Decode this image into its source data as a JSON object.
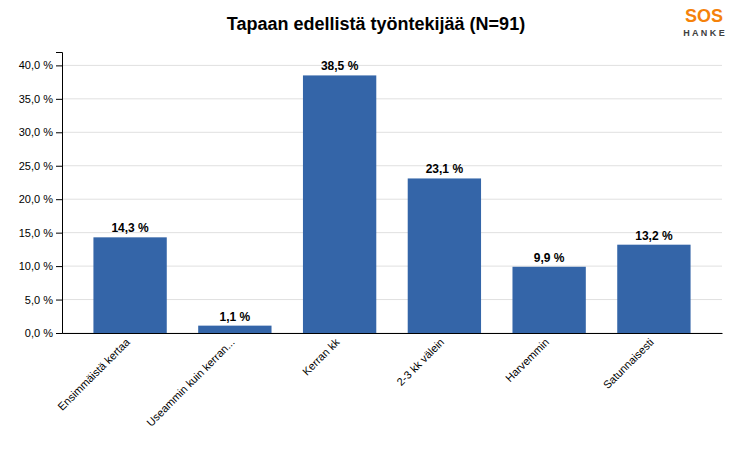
{
  "chart_data": {
    "type": "bar",
    "title": "Tapaan edellistä työntekijää (N=91)",
    "categories": [
      "Ensimmäistä kertaa",
      "Useammin kuin kerran...",
      "Kerran kk",
      "2-3 kk välein",
      "Harvemmin",
      "Satunnaisesti"
    ],
    "values": [
      14.3,
      1.1,
      38.5,
      23.1,
      9.9,
      13.2
    ],
    "value_labels": [
      "14,3 %",
      "1,1 %",
      "38,5 %",
      "23,1 %",
      "9,9 %",
      "13,2 %"
    ],
    "data_labels": true,
    "color": "#3465A8",
    "ylim": [
      0,
      42
    ],
    "yticks": [
      {
        "value": 0.0,
        "label": "0,0 %"
      },
      {
        "value": 5.0,
        "label": "5,0 %"
      },
      {
        "value": 10.0,
        "label": "10,0 %"
      },
      {
        "value": 15.0,
        "label": "15,0 %"
      },
      {
        "value": 20.0,
        "label": "20,0 %"
      },
      {
        "value": 25.0,
        "label": "25,0 %"
      },
      {
        "value": 30.0,
        "label": "30,0 %"
      },
      {
        "value": 35.0,
        "label": "35,0 %"
      },
      {
        "value": 40.0,
        "label": "40,0 %"
      }
    ],
    "grid": true,
    "annotations": [
      "SOS",
      "H A N K E"
    ]
  }
}
